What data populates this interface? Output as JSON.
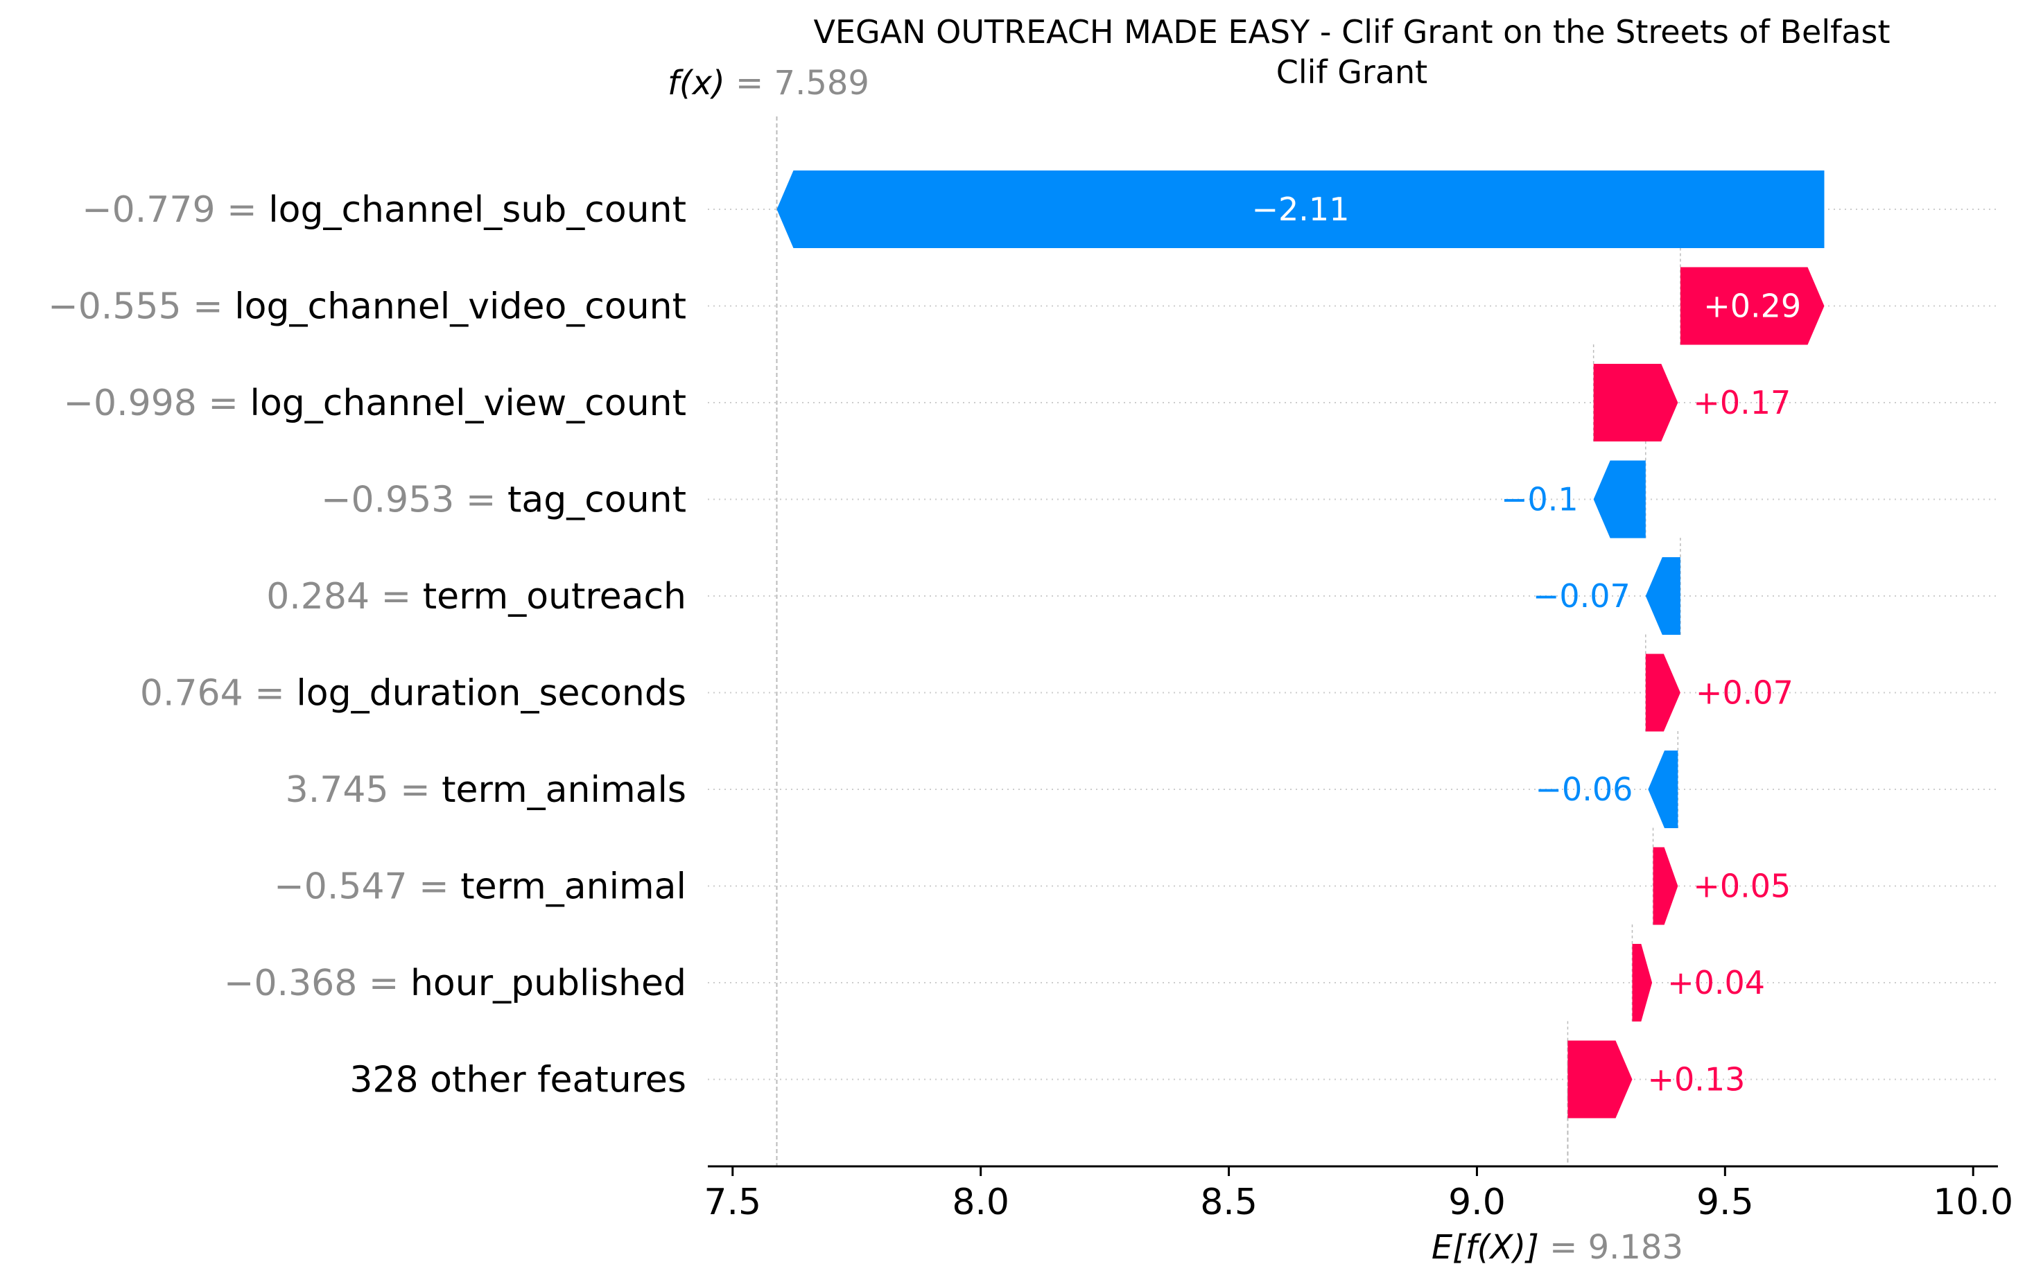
{
  "chart_data": {
    "type": "waterfall",
    "title": "VEGAN OUTREACH MADE EASY - Clif Grant on the Streets of Belfast",
    "subtitle": "Clif Grant",
    "fx": {
      "label_name": "f(x)",
      "label_value": "= 7.589",
      "value": 7.589
    },
    "expected": {
      "label_name": "E[f(X)]",
      "label_value": "= 9.183",
      "value": 9.183
    },
    "xlim": [
      7.45,
      10.05
    ],
    "xticks": [
      {
        "value": 7.5,
        "label": "7.5"
      },
      {
        "value": 8.0,
        "label": "8.0"
      },
      {
        "value": 8.5,
        "label": "8.5"
      },
      {
        "value": 9.0,
        "label": "9.0"
      },
      {
        "value": 9.5,
        "label": "9.5"
      },
      {
        "value": 10.0,
        "label": "10.0"
      }
    ],
    "features": [
      {
        "value_text": "−0.779 =",
        "name": "log_channel_sub_count",
        "shap": -2.11,
        "start": 9.7,
        "end": 7.589,
        "label": "−2.11"
      },
      {
        "value_text": "−0.555 =",
        "name": "log_channel_video_count",
        "shap": 0.29,
        "start": 9.41,
        "end": 9.7,
        "label": "+0.29"
      },
      {
        "value_text": "−0.998 =",
        "name": "log_channel_view_count",
        "shap": 0.17,
        "start": 9.235,
        "end": 9.405,
        "label": "+0.17"
      },
      {
        "value_text": "−0.953 =",
        "name": "tag_count",
        "shap": -0.1,
        "start": 9.34,
        "end": 9.235,
        "label": "−0.1"
      },
      {
        "value_text": "0.284 =",
        "name": "term_outreach",
        "shap": -0.07,
        "start": 9.41,
        "end": 9.34,
        "label": "−0.07"
      },
      {
        "value_text": "0.764 =",
        "name": "log_duration_seconds",
        "shap": 0.07,
        "start": 9.34,
        "end": 9.41,
        "label": "+0.07"
      },
      {
        "value_text": "3.745 =",
        "name": "term_animals",
        "shap": -0.06,
        "start": 9.405,
        "end": 9.345,
        "label": "−0.06"
      },
      {
        "value_text": "−0.547 =",
        "name": "term_animal",
        "shap": 0.05,
        "start": 9.355,
        "end": 9.405,
        "label": "+0.05"
      },
      {
        "value_text": "−0.368 =",
        "name": "hour_published",
        "shap": 0.04,
        "start": 9.313,
        "end": 9.353,
        "label": "+0.04"
      },
      {
        "value_text": "",
        "name": "328 other features",
        "shap": 0.13,
        "start": 9.183,
        "end": 9.313,
        "label": "+0.13"
      }
    ],
    "colors": {
      "positive": "#ff0051",
      "negative": "#008bfb",
      "muted": "#8c8c8c"
    },
    "grid": "dotted horizontal"
  }
}
